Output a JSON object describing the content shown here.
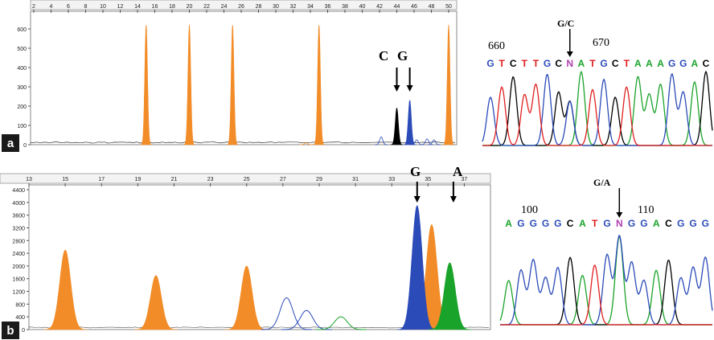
{
  "panels": {
    "a": {
      "label": "a",
      "electropherogram": {
        "x_ticks": [
          "2",
          "4",
          "6",
          "8",
          "10",
          "12",
          "14",
          "16",
          "18",
          "20",
          "22",
          "24",
          "26",
          "28",
          "30",
          "32",
          "34",
          "36",
          "38",
          "40",
          "42",
          "44",
          "46",
          "48",
          "50"
        ],
        "y_ticks": [
          "0",
          "100",
          "200",
          "300",
          "400",
          "500",
          "600"
        ],
        "allele_labels": [
          "C",
          "G"
        ]
      },
      "chromatogram": {
        "position_labels": [
          "660",
          "670"
        ],
        "variant_label": "G/C",
        "sequence": [
          "G",
          "T",
          "C",
          "T",
          "T",
          "G",
          "C",
          "N",
          "A",
          "T",
          "G",
          "C",
          "T",
          "A",
          "A",
          "A",
          "G",
          "G",
          "A",
          "C"
        ]
      }
    },
    "b": {
      "label": "b",
      "electropherogram": {
        "x_ticks": [
          "13",
          "15",
          "17",
          "19",
          "21",
          "23",
          "25",
          "27",
          "29",
          "31",
          "33",
          "35",
          "37"
        ],
        "y_ticks": [
          "0",
          "400",
          "800",
          "1200",
          "1600",
          "2000",
          "2400",
          "2800",
          "3200",
          "3600",
          "4000",
          "4400"
        ],
        "allele_labels": [
          "G",
          "A"
        ]
      },
      "chromatogram": {
        "position_labels": [
          "100",
          "110"
        ],
        "variant_label": "G/A",
        "sequence": [
          "A",
          "G",
          "G",
          "G",
          "G",
          "C",
          "A",
          "T",
          "G",
          "N",
          "G",
          "G",
          "A",
          "C",
          "G",
          "G",
          "G"
        ]
      }
    }
  },
  "colors": {
    "size_standard": "#f28c28",
    "C": "#000000",
    "G": "#2b4bb8",
    "A": "#1aa32a",
    "T": "#e02020",
    "N": "#b040b0",
    "background": "#ffffff"
  },
  "chart_data": [
    {
      "type": "line",
      "panel": "a-electropherogram",
      "title": "",
      "xlabel": "",
      "ylabel": "",
      "xlim": [
        2,
        50
      ],
      "ylim": [
        0,
        600
      ],
      "series": [
        {
          "name": "",
          "color": "#f28c28",
          "x": [
            15,
            20,
            25,
            35,
            50
          ],
          "values": [
            620,
            620,
            620,
            620,
            620
          ]
        },
        {
          "name": "C",
          "color": "#000000",
          "x": [
            44
          ],
          "values": [
            190
          ]
        },
        {
          "name": "G",
          "color": "#2b4bb8",
          "x": [
            45.5
          ],
          "values": [
            230
          ]
        }
      ]
    },
    {
      "type": "line",
      "panel": "b-electropherogram",
      "title": "",
      "xlabel": "",
      "ylabel": "",
      "xlim": [
        13,
        38
      ],
      "ylim": [
        0,
        4400
      ],
      "series": [
        {
          "name": "",
          "color": "#f28c28",
          "x": [
            15,
            20,
            25,
            35.2
          ],
          "values": [
            2500,
            1700,
            2000,
            3300
          ]
        },
        {
          "name": "G",
          "color": "#2b4bb8",
          "x": [
            34.4,
            27.2,
            28.3
          ],
          "values": [
            3900,
            1000,
            600
          ]
        },
        {
          "name": "A",
          "color": "#1aa32a",
          "x": [
            36.2,
            30.2
          ],
          "values": [
            2100,
            400
          ]
        }
      ]
    }
  ]
}
